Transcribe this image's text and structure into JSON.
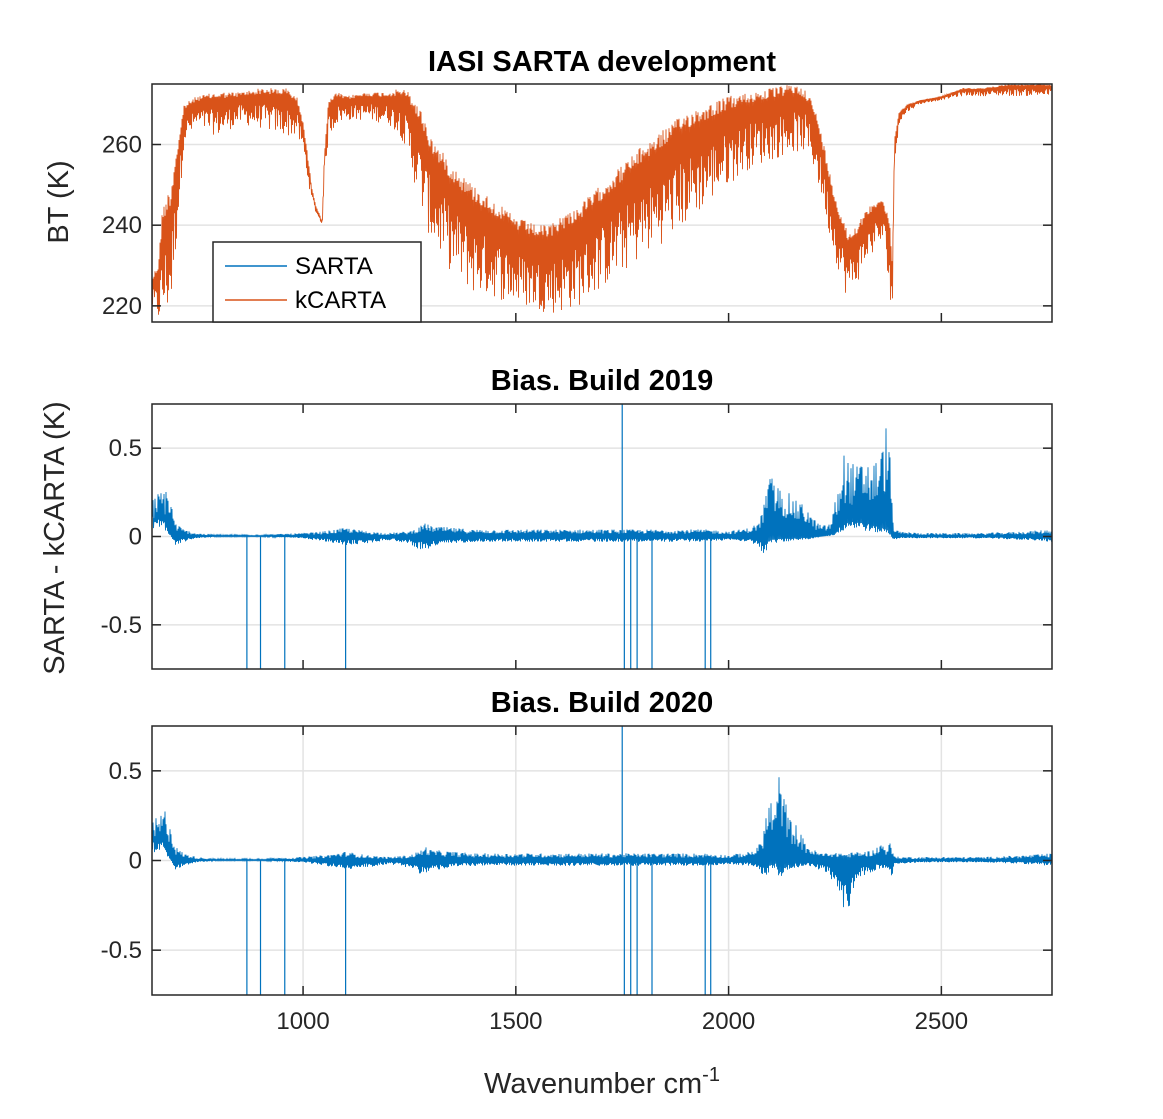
{
  "chart_data": [
    {
      "type": "line",
      "title": "IASI SARTA development",
      "ylabel": "BT (K)",
      "xlabel": "",
      "xlim": [
        645,
        2760
      ],
      "ylim": [
        216,
        275
      ],
      "yticks": [
        220,
        240,
        260
      ],
      "xticks": [
        1000,
        1500,
        2000,
        2500
      ],
      "show_xtick_labels": false,
      "grid": "y",
      "legend": {
        "placement": "lower-left",
        "entries": [
          {
            "name": "SARTA",
            "color": "#0072BD"
          },
          {
            "name": "kCARTA",
            "color": "#D95319"
          }
        ]
      },
      "series": [
        {
          "name": "kCARTA",
          "color": "#D95319",
          "envelope": {
            "x": [
              645,
              660,
              670,
              690,
              700,
              710,
              720,
              750,
              800,
              850,
              900,
              960,
              985,
              1000,
              1010,
              1020,
              1030,
              1045,
              1050,
              1060,
              1080,
              1100,
              1150,
              1200,
              1230,
              1250,
              1280,
              1300,
              1350,
              1400,
              1450,
              1500,
              1550,
              1580,
              1600,
              1650,
              1700,
              1750,
              1800,
              1850,
              1900,
              1950,
              2000,
              2050,
              2100,
              2150,
              2180,
              2200,
              2220,
              2240,
              2260,
              2270,
              2280,
              2300,
              2320,
              2340,
              2360,
              2370,
              2380,
              2385,
              2390,
              2400,
              2420,
              2450,
              2500,
              2550,
              2600,
              2650,
              2700,
              2760
            ],
            "upper": [
              227,
              231,
              245,
              250,
              258,
              263,
              270,
              272,
              273,
              273,
              274,
              274,
              272,
              266,
              258,
              250,
              245,
              241,
              258,
              271,
              273,
              272,
              273,
              273,
              274,
              273,
              268,
              262,
              255,
              250,
              246,
              242,
              240,
              240,
              242,
              245,
              250,
              255,
              260,
              264,
              268,
              270,
              272,
              273,
              274,
              275,
              274,
              270,
              262,
              252,
              244,
              242,
              238,
              240,
              243,
              246,
              247,
              244,
              240,
              230,
              262,
              268,
              270,
              271,
              272,
              274,
              274,
              275,
              275,
              275
            ],
            "lower": [
              219,
              216,
              216,
              219,
              232,
              245,
              260,
              264,
              262,
              265,
              264,
              262,
              262,
              258,
              252,
              246,
              243,
              240,
              250,
              262,
              265,
              266,
              266,
              265,
              262,
              255,
              243,
              236,
              228,
              223,
              222,
              220,
              219,
              218,
              218,
              220,
              224,
              228,
              232,
              236,
              240,
              245,
              250,
              254,
              256,
              258,
              258,
              254,
              246,
              236,
              228,
              224,
              222,
              225,
              230,
              233,
              235,
              233,
              220,
              219,
              254,
              265,
              268,
              270,
              271,
              272,
              272,
              272,
              272,
              272
            ]
          }
        },
        {
          "name": "SARTA",
          "color": "#0072BD",
          "note_hidden": "overlaid beneath kCARTA"
        }
      ]
    },
    {
      "type": "line",
      "title": "Bias. Build 2019",
      "ylabel": "",
      "xlabel": "",
      "xlim": [
        645,
        2760
      ],
      "ylim": [
        -0.75,
        0.75
      ],
      "yticks": [
        -0.5,
        0,
        0.5
      ],
      "xticks": [
        1000,
        1500,
        2000,
        2500
      ],
      "show_xtick_labels": false,
      "grid": "y",
      "series": [
        {
          "name": "SARTA - kCARTA",
          "color": "#0072BD",
          "envelope": {
            "x": [
              645,
              660,
              670,
              680,
              690,
              700,
              720,
              750,
              800,
              900,
              1000,
              1050,
              1100,
              1150,
              1200,
              1250,
              1270,
              1290,
              1300,
              1350,
              1400,
              1500,
              1600,
              1700,
              1750,
              1800,
              1900,
              1950,
              2000,
              2050,
              2070,
              2080,
              2090,
              2100,
              2110,
              2120,
              2140,
              2160,
              2180,
              2200,
              2220,
              2240,
              2250,
              2260,
              2270,
              2280,
              2300,
              2320,
              2340,
              2360,
              2370,
              2380,
              2385,
              2390,
              2400,
              2450,
              2500,
              2600,
              2700,
              2760
            ],
            "upper": [
              0.22,
              0.25,
              0.28,
              0.3,
              0.2,
              0.08,
              0.04,
              0.02,
              0.01,
              0.01,
              0.02,
              0.03,
              0.05,
              0.03,
              0.02,
              0.03,
              0.05,
              0.08,
              0.06,
              0.05,
              0.04,
              0.04,
              0.04,
              0.04,
              0.04,
              0.04,
              0.04,
              0.04,
              0.03,
              0.05,
              0.08,
              0.15,
              0.3,
              0.35,
              0.3,
              0.28,
              0.25,
              0.2,
              0.18,
              0.1,
              0.06,
              0.08,
              0.2,
              0.3,
              0.48,
              0.45,
              0.4,
              0.45,
              0.42,
              0.5,
              0.64,
              0.45,
              0.15,
              0.04,
              0.03,
              0.02,
              0.02,
              0.02,
              0.03,
              0.04
            ],
            "lower": [
              0.12,
              0.1,
              0.12,
              0.05,
              0.0,
              -0.05,
              -0.03,
              -0.01,
              0.0,
              0.0,
              -0.01,
              -0.03,
              -0.05,
              -0.04,
              -0.02,
              -0.04,
              -0.07,
              -0.08,
              -0.06,
              -0.04,
              -0.03,
              -0.03,
              -0.03,
              -0.03,
              -0.03,
              -0.03,
              -0.03,
              -0.03,
              -0.02,
              -0.03,
              -0.06,
              -0.1,
              -0.08,
              -0.05,
              -0.04,
              -0.03,
              -0.03,
              -0.02,
              -0.02,
              -0.01,
              0.0,
              0.01,
              0.02,
              0.05,
              0.08,
              0.1,
              0.1,
              0.08,
              0.06,
              0.05,
              0.05,
              0.02,
              -0.02,
              -0.02,
              -0.01,
              -0.01,
              -0.01,
              -0.01,
              -0.02,
              -0.03
            ]
          },
          "spikes_down": [
            868,
            900,
            957,
            1100,
            1755,
            1770,
            1785,
            1820,
            1945,
            1958
          ],
          "spikes_up": [
            1750
          ]
        }
      ]
    },
    {
      "type": "line",
      "title": "Bias. Build 2020",
      "ylabel": "",
      "xlabel": "Wavenumber cm",
      "xlabel_superscript": "-1",
      "xlim": [
        645,
        2760
      ],
      "ylim": [
        -0.75,
        0.75
      ],
      "yticks": [
        -0.5,
        0,
        0.5
      ],
      "xticks": [
        1000,
        1500,
        2000,
        2500
      ],
      "show_xtick_labels": true,
      "grid": "xy",
      "series": [
        {
          "name": "SARTA - kCARTA",
          "color": "#0072BD",
          "envelope": {
            "x": [
              645,
              660,
              670,
              680,
              690,
              700,
              720,
              750,
              800,
              900,
              1000,
              1050,
              1100,
              1150,
              1200,
              1250,
              1270,
              1290,
              1300,
              1350,
              1400,
              1500,
              1600,
              1700,
              1750,
              1800,
              1900,
              1950,
              2000,
              2050,
              2070,
              2080,
              2090,
              2100,
              2110,
              2120,
              2140,
              2160,
              2180,
              2200,
              2220,
              2240,
              2250,
              2260,
              2270,
              2280,
              2300,
              2320,
              2340,
              2360,
              2370,
              2380,
              2385,
              2390,
              2400,
              2450,
              2500,
              2600,
              2700,
              2760
            ],
            "upper": [
              0.22,
              0.25,
              0.28,
              0.3,
              0.2,
              0.08,
              0.04,
              0.02,
              0.01,
              0.01,
              0.02,
              0.03,
              0.05,
              0.03,
              0.02,
              0.03,
              0.05,
              0.08,
              0.06,
              0.05,
              0.04,
              0.04,
              0.04,
              0.04,
              0.04,
              0.04,
              0.04,
              0.04,
              0.03,
              0.05,
              0.08,
              0.15,
              0.3,
              0.35,
              0.3,
              0.52,
              0.25,
              0.2,
              0.1,
              0.06,
              0.04,
              0.05,
              0.04,
              0.05,
              0.04,
              0.04,
              0.05,
              0.05,
              0.06,
              0.1,
              0.08,
              0.1,
              0.05,
              0.03,
              0.02,
              0.02,
              0.02,
              0.02,
              0.03,
              0.04
            ],
            "lower": [
              0.12,
              0.1,
              0.12,
              0.05,
              0.0,
              -0.05,
              -0.03,
              -0.01,
              0.0,
              0.0,
              -0.01,
              -0.03,
              -0.05,
              -0.04,
              -0.02,
              -0.04,
              -0.07,
              -0.08,
              -0.06,
              -0.04,
              -0.03,
              -0.03,
              -0.03,
              -0.03,
              -0.03,
              -0.03,
              -0.03,
              -0.03,
              -0.02,
              -0.03,
              -0.06,
              -0.1,
              -0.08,
              -0.05,
              -0.04,
              -0.1,
              -0.05,
              -0.04,
              -0.03,
              -0.04,
              -0.06,
              -0.1,
              -0.14,
              -0.2,
              -0.26,
              -0.32,
              -0.12,
              -0.08,
              -0.06,
              -0.05,
              -0.04,
              -0.08,
              -0.12,
              -0.03,
              -0.02,
              -0.01,
              -0.01,
              -0.01,
              -0.02,
              -0.03
            ]
          },
          "spikes_down": [
            868,
            900,
            957,
            1100,
            1755,
            1770,
            1785,
            1820,
            1945,
            1958
          ],
          "spikes_up": [
            1750
          ]
        }
      ]
    }
  ],
  "shared_ylabel": "SARTA - kCARTA (K)"
}
